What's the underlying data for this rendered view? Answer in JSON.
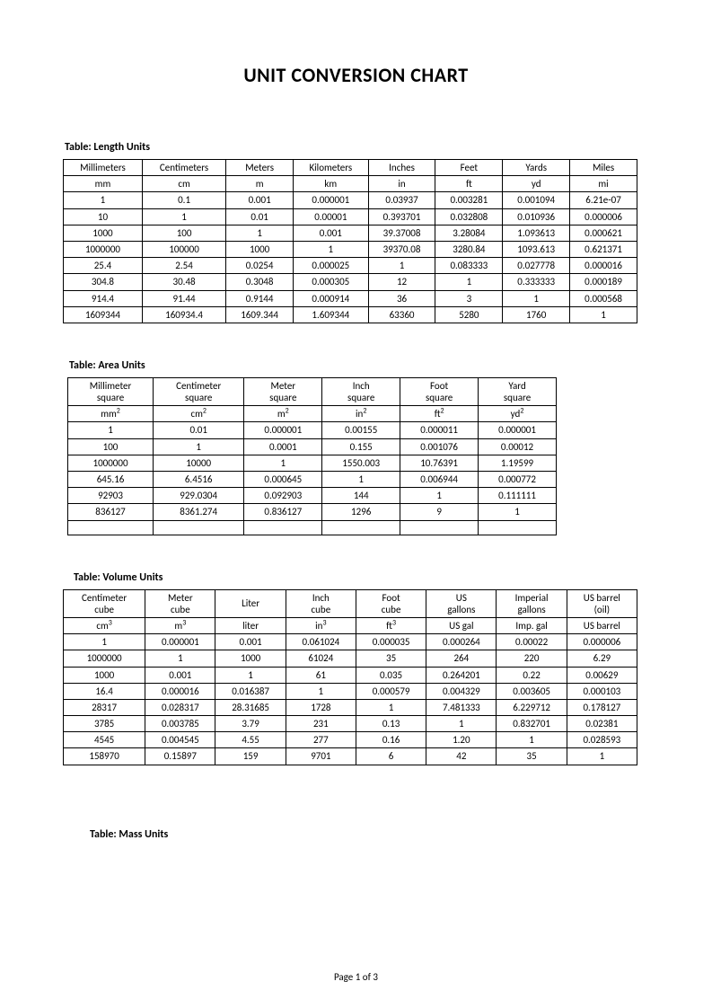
{
  "title": "UNIT CONVERSION CHART",
  "footer": "Page 1 of 3",
  "tables": {
    "length": {
      "caption": "Table:  Length Units",
      "headers": [
        "Millimeters",
        "Centimeters",
        "Meters",
        "Kilometers",
        "Inches",
        "Feet",
        "Yards",
        "Miles"
      ],
      "symbols": [
        "mm",
        "cm",
        "m",
        "km",
        "in",
        "ft",
        "yd",
        "mi"
      ],
      "rows": [
        [
          "1",
          "0.1",
          "0.001",
          "0.000001",
          "0.03937",
          "0.003281",
          "0.001094",
          "6.21e-07"
        ],
        [
          "10",
          "1",
          "0.01",
          "0.00001",
          "0.393701",
          "0.032808",
          "0.010936",
          "0.000006"
        ],
        [
          "1000",
          "100",
          "1",
          "0.001",
          "39.37008",
          "3.28084",
          "1.093613",
          "0.000621"
        ],
        [
          "1000000",
          "100000",
          "1000",
          "1",
          "39370.08",
          "3280.84",
          "1093.613",
          "0.621371"
        ],
        [
          "25.4",
          "2.54",
          "0.0254",
          "0.000025",
          "1",
          "0.083333",
          "0.027778",
          "0.000016"
        ],
        [
          "304.8",
          "30.48",
          "0.3048",
          "0.000305",
          "12",
          "1",
          "0.333333",
          "0.000189"
        ],
        [
          "914.4",
          "91.44",
          "0.9144",
          "0.000914",
          "36",
          "3",
          "1",
          "0.000568"
        ],
        [
          "1609344",
          "160934.4",
          "1609.344",
          "1.609344",
          "63360",
          "5280",
          "1760",
          "1"
        ]
      ]
    },
    "area": {
      "caption": "Table:  Area Units",
      "headers": [
        "Millimeter square",
        "Centimeter square",
        "Meter square",
        "Inch square",
        "Foot square",
        "Yard square"
      ],
      "symbols": [
        "mm",
        "cm",
        "m",
        "in",
        "ft",
        "yd"
      ],
      "sup": "2",
      "rows": [
        [
          "1",
          "0.01",
          "0.000001",
          "0.00155",
          "0.000011",
          "0.000001"
        ],
        [
          "100",
          "1",
          "0.0001",
          "0.155",
          "0.001076",
          "0.00012"
        ],
        [
          "1000000",
          "10000",
          "1",
          "1550.003",
          "10.76391",
          "1.19599"
        ],
        [
          "645.16",
          "6.4516",
          "0.000645",
          "1",
          "0.006944",
          "0.000772"
        ],
        [
          "92903",
          "929.0304",
          "0.092903",
          "144",
          "1",
          "0.111111"
        ],
        [
          "836127",
          "8361.274",
          "0.836127",
          "1296",
          "9",
          "1"
        ],
        [
          "",
          "",
          "",
          "",
          "",
          ""
        ]
      ]
    },
    "volume": {
      "caption": "Table:  Volume Units",
      "headers": [
        "Centimeter cube",
        "Meter cube",
        "Liter",
        "Inch cube",
        "Foot cube",
        "US gallons",
        "Imperial gallons",
        "US barrel (oil)"
      ],
      "symbols_html": [
        "cm<sup>3</sup>",
        "m<sup>3</sup>",
        "liter",
        "in<sup>3</sup>",
        "ft<sup>3</sup>",
        "US gal",
        "Imp. gal",
        "US barrel"
      ],
      "rows": [
        [
          "1",
          "0.000001",
          "0.001",
          "0.061024",
          "0.000035",
          "0.000264",
          "0.00022",
          "0.000006"
        ],
        [
          "1000000",
          "1",
          "1000",
          "61024",
          "35",
          "264",
          "220",
          "6.29"
        ],
        [
          "1000",
          "0.001",
          "1",
          "61",
          "0.035",
          "0.264201",
          "0.22",
          "0.00629"
        ],
        [
          "16.4",
          "0.000016",
          "0.016387",
          "1",
          "0.000579",
          "0.004329",
          "0.003605",
          "0.000103"
        ],
        [
          "28317",
          "0.028317",
          "28.31685",
          "1728",
          "1",
          "7.481333",
          "6.229712",
          "0.178127"
        ],
        [
          "3785",
          "0.003785",
          "3.79",
          "231",
          "0.13",
          "1",
          "0.832701",
          "0.02381"
        ],
        [
          "4545",
          "0.004545",
          "4.55",
          "277",
          "0.16",
          "1.20",
          "1",
          "0.028593"
        ],
        [
          "158970",
          "0.15897",
          "159",
          "9701",
          "6",
          "42",
          "35",
          "1"
        ]
      ]
    },
    "mass": {
      "caption": "Table:  Mass Units"
    }
  }
}
